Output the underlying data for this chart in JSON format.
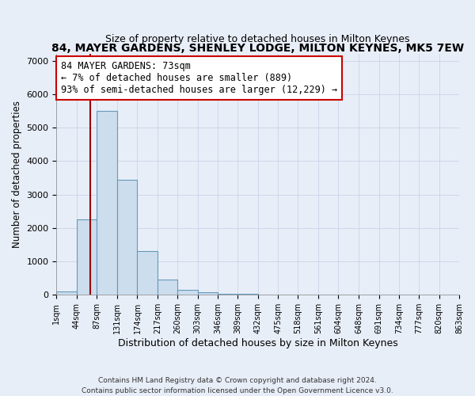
{
  "title": "84, MAYER GARDENS, SHENLEY LODGE, MILTON KEYNES, MK5 7EW",
  "subtitle": "Size of property relative to detached houses in Milton Keynes",
  "xlabel": "Distribution of detached houses by size in Milton Keynes",
  "ylabel": "Number of detached properties",
  "bin_edges": [
    1,
    44,
    87,
    131,
    174,
    217,
    260,
    303,
    346,
    389,
    432,
    475,
    518,
    561,
    604,
    648,
    691,
    734,
    777,
    820,
    863
  ],
  "bar_heights": [
    100,
    2250,
    5500,
    3450,
    1300,
    450,
    150,
    75,
    25,
    20,
    15,
    10,
    5,
    5,
    3,
    3,
    2,
    2,
    1,
    1
  ],
  "bar_color": "#ccdded",
  "bar_edge_color": "#6699bb",
  "vline_x": 73,
  "vline_color": "#990000",
  "annotation_text": "84 MAYER GARDENS: 73sqm\n← 7% of detached houses are smaller (889)\n93% of semi-detached houses are larger (12,229) →",
  "annotation_box_color": "#ffffff",
  "annotation_box_edge_color": "#cc0000",
  "ylim": [
    0,
    7200
  ],
  "xlim": [
    1,
    863
  ],
  "tick_labels": [
    "1sqm",
    "44sqm",
    "87sqm",
    "131sqm",
    "174sqm",
    "217sqm",
    "260sqm",
    "303sqm",
    "346sqm",
    "389sqm",
    "432sqm",
    "475sqm",
    "518sqm",
    "561sqm",
    "604sqm",
    "648sqm",
    "691sqm",
    "734sqm",
    "777sqm",
    "820sqm",
    "863sqm"
  ],
  "tick_positions": [
    1,
    44,
    87,
    131,
    174,
    217,
    260,
    303,
    346,
    389,
    432,
    475,
    518,
    561,
    604,
    648,
    691,
    734,
    777,
    820,
    863
  ],
  "footer": "Contains HM Land Registry data © Crown copyright and database right 2024.\nContains public sector information licensed under the Open Government Licence v3.0.",
  "title_fontsize": 10,
  "subtitle_fontsize": 9,
  "xlabel_fontsize": 9,
  "ylabel_fontsize": 8.5,
  "annotation_fontsize": 8.5,
  "grid_color": "#c8d4e8",
  "bg_color": "#e8eef8"
}
